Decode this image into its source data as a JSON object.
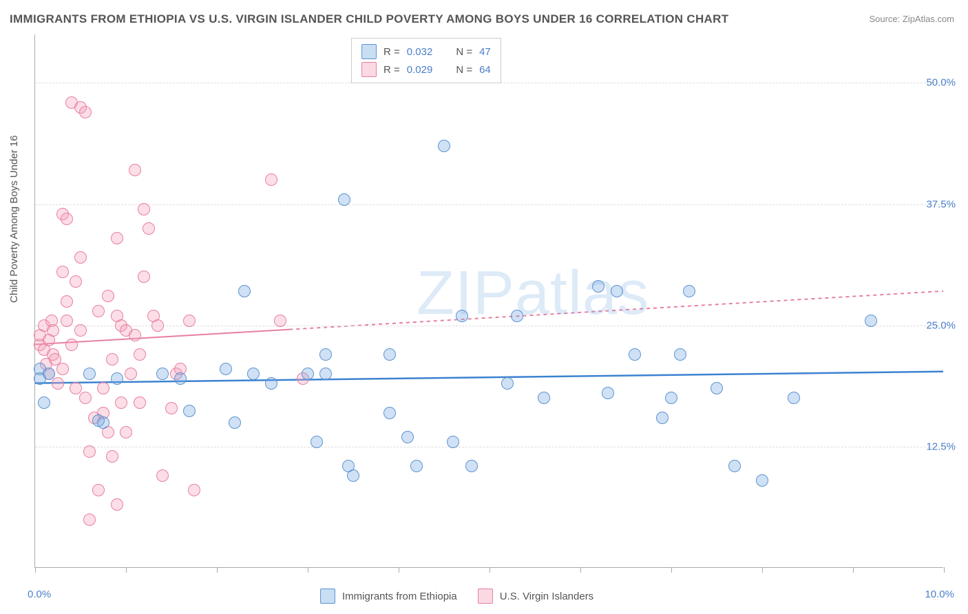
{
  "title": "IMMIGRANTS FROM ETHIOPIA VS U.S. VIRGIN ISLANDER CHILD POVERTY AMONG BOYS UNDER 16 CORRELATION CHART",
  "source": "Source: ZipAtlas.com",
  "y_axis_label": "Child Poverty Among Boys Under 16",
  "watermark": "ZIPatlas",
  "title_color": "#555555",
  "source_color": "#888888",
  "plot": {
    "xlim": [
      0,
      10
    ],
    "ylim": [
      0,
      55
    ],
    "x_ticks": [
      0,
      1,
      2,
      3,
      4,
      5,
      6,
      7,
      8,
      9,
      10
    ],
    "y_gridlines": [
      12.5,
      25.0,
      37.5,
      50.0
    ],
    "y_tick_labels": [
      "12.5%",
      "25.0%",
      "37.5%",
      "50.0%"
    ],
    "x_min_label": "0.0%",
    "x_max_label": "10.0%",
    "grid_color": "#dcdcdc",
    "axis_color": "#aaaaaa",
    "background_color": "#ffffff"
  },
  "legend_top": {
    "rows": [
      {
        "swatch": "blue",
        "r_label": "R =",
        "r_value": "0.032",
        "n_label": "N =",
        "n_value": "47"
      },
      {
        "swatch": "pink",
        "r_label": "R =",
        "r_value": "0.029",
        "n_label": "N =",
        "n_value": "64"
      }
    ]
  },
  "legend_bottom": {
    "items": [
      {
        "swatch": "blue",
        "label": "Immigrants from Ethiopia"
      },
      {
        "swatch": "pink",
        "label": "U.S. Virgin Islanders"
      }
    ]
  },
  "series": {
    "blue": {
      "color_fill": "rgba(120,170,225,0.35)",
      "color_stroke": "#5b93d1",
      "marker_size": 18,
      "trend": {
        "start_x": 0,
        "start_y": 19.0,
        "end_x": 10,
        "end_y": 20.2,
        "color": "#3b82d1",
        "width": 2.5,
        "dash": "none"
      },
      "points": [
        [
          0.05,
          20.5
        ],
        [
          0.05,
          19.5
        ],
        [
          0.1,
          17.0
        ],
        [
          0.15,
          20.0
        ],
        [
          0.6,
          20.0
        ],
        [
          0.7,
          15.2
        ],
        [
          0.75,
          15.0
        ],
        [
          0.9,
          19.5
        ],
        [
          1.4,
          20.0
        ],
        [
          1.6,
          19.5
        ],
        [
          1.7,
          16.2
        ],
        [
          2.1,
          20.5
        ],
        [
          2.2,
          15.0
        ],
        [
          2.3,
          28.5
        ],
        [
          2.4,
          20.0
        ],
        [
          2.6,
          19.0
        ],
        [
          3.0,
          20.0
        ],
        [
          3.1,
          13.0
        ],
        [
          3.2,
          22.0
        ],
        [
          3.2,
          20.0
        ],
        [
          3.4,
          38.0
        ],
        [
          3.45,
          10.5
        ],
        [
          3.5,
          9.5
        ],
        [
          3.9,
          22.0
        ],
        [
          3.9,
          16.0
        ],
        [
          4.1,
          13.5
        ],
        [
          4.2,
          10.5
        ],
        [
          4.5,
          43.5
        ],
        [
          4.6,
          13.0
        ],
        [
          4.7,
          26.0
        ],
        [
          4.8,
          10.5
        ],
        [
          5.2,
          19.0
        ],
        [
          5.3,
          26.0
        ],
        [
          5.6,
          17.5
        ],
        [
          6.2,
          29.0
        ],
        [
          6.3,
          18.0
        ],
        [
          6.4,
          28.5
        ],
        [
          6.6,
          22.0
        ],
        [
          6.9,
          15.5
        ],
        [
          7.0,
          17.5
        ],
        [
          7.1,
          22.0
        ],
        [
          7.2,
          28.5
        ],
        [
          7.5,
          18.5
        ],
        [
          7.7,
          10.5
        ],
        [
          8.0,
          9.0
        ],
        [
          8.35,
          17.5
        ],
        [
          9.2,
          25.5
        ]
      ]
    },
    "pink": {
      "color_fill": "rgba(245,160,185,0.35)",
      "color_stroke": "#e77fa0",
      "marker_size": 18,
      "trend": {
        "start_x": 0,
        "start_y": 23.0,
        "end_x": 10,
        "end_y": 28.5,
        "color": "#e77fa0",
        "width": 2,
        "dash": "5,5",
        "solid_fraction": 0.28
      },
      "points": [
        [
          0.05,
          23.0
        ],
        [
          0.05,
          24.0
        ],
        [
          0.1,
          22.5
        ],
        [
          0.1,
          25.0
        ],
        [
          0.12,
          21.0
        ],
        [
          0.15,
          23.5
        ],
        [
          0.15,
          20.0
        ],
        [
          0.18,
          25.5
        ],
        [
          0.2,
          24.5
        ],
        [
          0.2,
          22.0
        ],
        [
          0.22,
          21.5
        ],
        [
          0.25,
          19.0
        ],
        [
          0.3,
          36.5
        ],
        [
          0.3,
          30.5
        ],
        [
          0.3,
          20.5
        ],
        [
          0.35,
          36.0
        ],
        [
          0.35,
          27.5
        ],
        [
          0.35,
          25.5
        ],
        [
          0.4,
          23.0
        ],
        [
          0.4,
          48.0
        ],
        [
          0.45,
          29.5
        ],
        [
          0.45,
          18.5
        ],
        [
          0.5,
          47.5
        ],
        [
          0.5,
          32.0
        ],
        [
          0.5,
          24.5
        ],
        [
          0.55,
          47.0
        ],
        [
          0.55,
          17.5
        ],
        [
          0.6,
          12.0
        ],
        [
          0.6,
          5.0
        ],
        [
          0.65,
          15.5
        ],
        [
          0.7,
          8.0
        ],
        [
          0.7,
          26.5
        ],
        [
          0.75,
          18.5
        ],
        [
          0.75,
          16.0
        ],
        [
          0.8,
          28.0
        ],
        [
          0.8,
          14.0
        ],
        [
          0.85,
          21.5
        ],
        [
          0.85,
          11.5
        ],
        [
          0.9,
          34.0
        ],
        [
          0.9,
          26.0
        ],
        [
          0.9,
          6.5
        ],
        [
          0.95,
          25.0
        ],
        [
          0.95,
          17.0
        ],
        [
          1.0,
          24.5
        ],
        [
          1.0,
          14.0
        ],
        [
          1.05,
          20.0
        ],
        [
          1.1,
          41.0
        ],
        [
          1.1,
          24.0
        ],
        [
          1.15,
          22.0
        ],
        [
          1.15,
          17.0
        ],
        [
          1.2,
          37.0
        ],
        [
          1.2,
          30.0
        ],
        [
          1.25,
          35.0
        ],
        [
          1.3,
          26.0
        ],
        [
          1.35,
          25.0
        ],
        [
          1.4,
          9.5
        ],
        [
          1.5,
          16.5
        ],
        [
          1.55,
          20.0
        ],
        [
          1.6,
          20.5
        ],
        [
          1.7,
          25.5
        ],
        [
          1.75,
          8.0
        ],
        [
          2.6,
          40.0
        ],
        [
          2.7,
          25.5
        ],
        [
          2.95,
          19.5
        ]
      ]
    }
  }
}
